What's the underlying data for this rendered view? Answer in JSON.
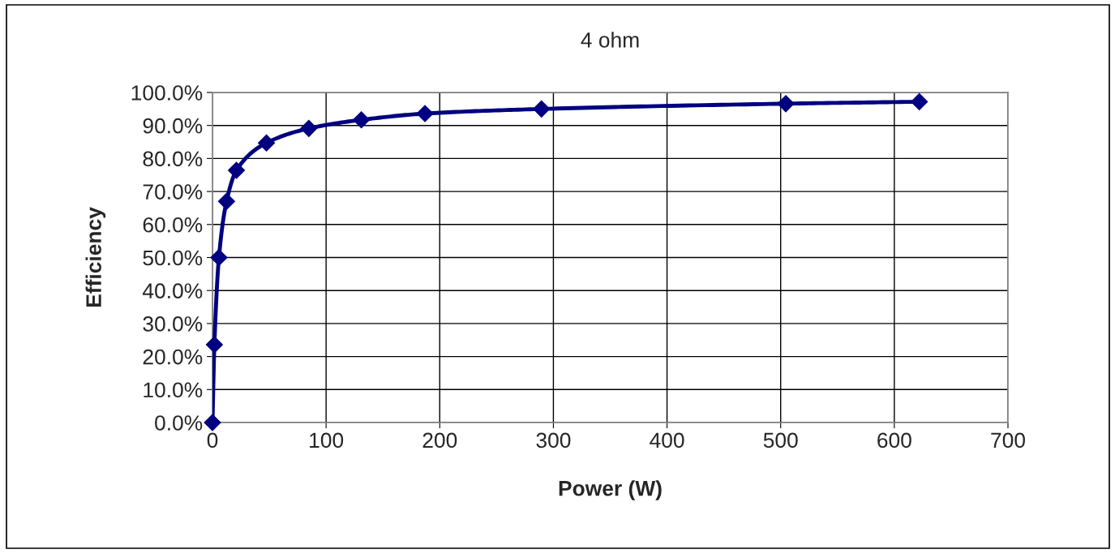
{
  "chart_data": {
    "type": "line",
    "title": "4 ohm",
    "xlabel": "Power (W)",
    "ylabel": "Efficiency",
    "x": [
      0,
      1.7,
      5.7,
      12.4,
      21.1,
      47.5,
      84.8,
      131,
      187,
      289.5,
      504.5,
      622
    ],
    "series": [
      {
        "color": "#000080",
        "values": [
          0,
          23.6,
          50.0,
          67.0,
          76.4,
          84.7,
          89.1,
          91.7,
          93.6,
          95.0,
          96.6,
          97.2
        ]
      }
    ],
    "xlim": [
      0,
      700
    ],
    "xticks": [
      0,
      100,
      200,
      300,
      400,
      500,
      600,
      700
    ],
    "ylim": [
      0,
      100
    ],
    "yticks": [
      {
        "value": 0,
        "label": "0.0%"
      },
      {
        "value": 10,
        "label": "10.0%"
      },
      {
        "value": 20,
        "label": "20.0%"
      },
      {
        "value": 30,
        "label": "30.0%"
      },
      {
        "value": 40,
        "label": "40.0%"
      },
      {
        "value": 50,
        "label": "50.0%"
      },
      {
        "value": 60,
        "label": "60.0%"
      },
      {
        "value": 70,
        "label": "70.0%"
      },
      {
        "value": 80,
        "label": "80.0%"
      },
      {
        "value": 90,
        "label": "90.0%"
      },
      {
        "value": 100,
        "label": "100.0%"
      }
    ],
    "grid": true,
    "marker": "diamond",
    "line_style": "solid"
  }
}
